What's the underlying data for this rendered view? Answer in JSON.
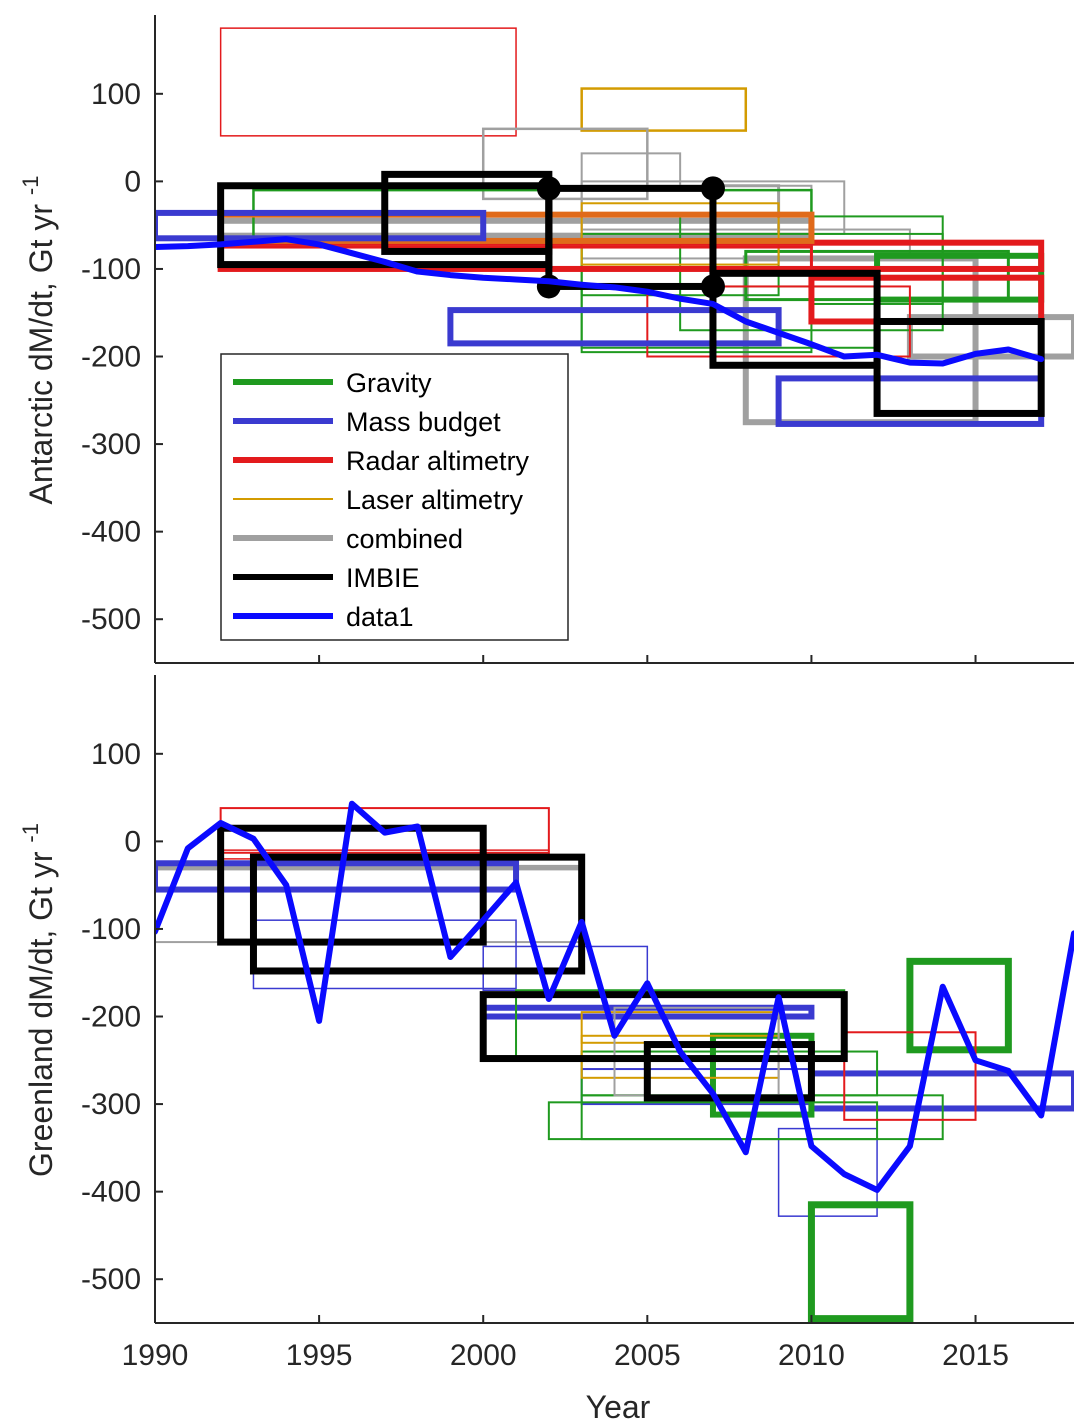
{
  "chart_data": [
    {
      "type": "line",
      "panel": "top",
      "ylabel": "Antarctic dM/dt, Gt yr",
      "ylabel_sup": "-1",
      "xlim": [
        1990,
        2018
      ],
      "ylim": [
        -550,
        190
      ],
      "yticks": [
        100,
        0,
        -100,
        -200,
        -300,
        -400,
        -500
      ],
      "legend_position": "lower-left inside",
      "legend": [
        {
          "name": "Gravity",
          "color": "#1f9a1f",
          "width": 6
        },
        {
          "name": "Mass budget",
          "color": "#3a3ad0",
          "width": 6
        },
        {
          "name": "Radar altimetry",
          "color": "#e31a1c",
          "width": 6
        },
        {
          "name": "Laser altimetry",
          "color": "#d39b00",
          "width": 2
        },
        {
          "name": "combined",
          "color": "#a0a0a0",
          "width": 6
        },
        {
          "name": "IMBIE",
          "color": "#000000",
          "width": 6
        },
        {
          "name": "data1",
          "color": "#0a0aff",
          "width": 6
        }
      ],
      "boxes": [
        {
          "group": "Radar altimetry",
          "x0": 1992,
          "x1": 2001,
          "y0": 52,
          "y1": 175,
          "w": 1.5
        },
        {
          "group": "Laser altimetry",
          "x0": 2003,
          "x1": 2008,
          "y0": 58,
          "y1": 106,
          "w": 2.5
        },
        {
          "group": "combined",
          "x0": 2000,
          "x1": 2005,
          "y0": -20,
          "y1": 60,
          "w": 2.5
        },
        {
          "group": "combined",
          "x0": 2003,
          "x1": 2006,
          "y0": -10,
          "y1": 32,
          "w": 2
        },
        {
          "group": "combined",
          "x0": 2003,
          "x1": 2010,
          "y0": -70,
          "y1": -5,
          "w": 2
        },
        {
          "group": "combined",
          "x0": 2007,
          "x1": 2009,
          "y0": -70,
          "y1": -5,
          "w": 3
        },
        {
          "group": "combined",
          "x0": 2003,
          "x1": 2011,
          "y0": -60,
          "y1": 0,
          "w": 2
        },
        {
          "group": "combined",
          "x0": 2003,
          "x1": 2009,
          "y0": -75,
          "y1": -40,
          "w": 2
        },
        {
          "group": "combined",
          "x0": 2003,
          "x1": 2013,
          "y0": -88,
          "y1": -55,
          "w": 2
        },
        {
          "group": "combined",
          "x0": 2008,
          "x1": 2015,
          "y0": -275,
          "y1": -88,
          "w": 6
        },
        {
          "group": "combined",
          "x0": 2013,
          "x1": 2018,
          "y0": -200,
          "y1": -155,
          "w": 6
        },
        {
          "group": "combined",
          "x0": 1992,
          "x1": 2010,
          "y0": -62,
          "y1": -45,
          "w": 6
        },
        {
          "group": "Gravity",
          "x0": 1993,
          "x1": 2010,
          "y0": -70,
          "y1": -10,
          "w": 2.5
        },
        {
          "group": "Gravity",
          "x0": 2003,
          "x1": 2009,
          "y0": -130,
          "y1": -75,
          "w": 2
        },
        {
          "group": "Gravity",
          "x0": 2003,
          "x1": 2010,
          "y0": -195,
          "y1": -60,
          "w": 2
        },
        {
          "group": "Gravity",
          "x0": 2003,
          "x1": 2012,
          "y0": -190,
          "y1": -120,
          "w": 2
        },
        {
          "group": "Gravity",
          "x0": 2006,
          "x1": 2014,
          "y0": -170,
          "y1": -40,
          "w": 2
        },
        {
          "group": "Gravity",
          "x0": 2010,
          "x1": 2014,
          "y0": -140,
          "y1": -60,
          "w": 2
        },
        {
          "group": "Gravity",
          "x0": 2008,
          "x1": 2016,
          "y0": -135,
          "y1": -80,
          "w": 3
        },
        {
          "group": "Gravity",
          "x0": 2012,
          "x1": 2017,
          "y0": -135,
          "y1": -85,
          "w": 6
        },
        {
          "group": "Laser altimetry",
          "x0": 2003,
          "x1": 2009,
          "y0": -95,
          "y1": -25,
          "w": 2
        },
        {
          "group": "Radar altimetry",
          "x0": 1992,
          "x1": 2010,
          "y0": -100,
          "y1": -75,
          "w": 3
        },
        {
          "group": "Radar altimetry",
          "x0": 1992,
          "x1": 2017,
          "y0": -100,
          "y1": -70,
          "w": 6
        },
        {
          "group": "Radar altimetry",
          "x0": 2010,
          "x1": 2017,
          "y0": -160,
          "y1": -110,
          "w": 6
        },
        {
          "group": "Radar altimetry",
          "x0": 2005,
          "x1": 2013,
          "y0": -200,
          "y1": -120,
          "w": 2
        },
        {
          "group": "Laser altimetry",
          "x0": 1992,
          "x1": 2010,
          "y0": -68,
          "y1": -38,
          "w": 6,
          "color": "#e06a1a"
        },
        {
          "group": "Mass budget",
          "x0": 1990,
          "x1": 2000,
          "y0": -65,
          "y1": -36,
          "w": 6
        },
        {
          "group": "Mass budget",
          "x0": 1999,
          "x1": 2009,
          "y0": -185,
          "y1": -147,
          "w": 6
        },
        {
          "group": "Mass budget",
          "x0": 2009,
          "x1": 2017,
          "y0": -277,
          "y1": -225,
          "w": 6
        },
        {
          "group": "IMBIE",
          "x0": 1992,
          "x1": 2002,
          "y0": -95,
          "y1": -5,
          "w": 7
        },
        {
          "group": "IMBIE",
          "x0": 1997,
          "x1": 2002,
          "y0": -80,
          "y1": 8,
          "w": 7
        },
        {
          "group": "IMBIE",
          "x0": 2002,
          "x1": 2007,
          "y0": -120,
          "y1": -8,
          "w": 7
        },
        {
          "group": "IMBIE",
          "x0": 2007,
          "x1": 2012,
          "y0": -210,
          "y1": -105,
          "w": 7
        },
        {
          "group": "IMBIE",
          "x0": 2012,
          "x1": 2017,
          "y0": -265,
          "y1": -160,
          "w": 7
        }
      ],
      "markers": [
        {
          "x": 2002,
          "y": -8
        },
        {
          "x": 2007,
          "y": -8
        },
        {
          "x": 2002,
          "y": -120
        },
        {
          "x": 2007,
          "y": -120
        }
      ],
      "series": [
        {
          "name": "data1",
          "x": [
            1990,
            1991,
            1992,
            1993,
            1994,
            1995,
            1996,
            1997,
            1998,
            1999,
            2000,
            2001,
            2002,
            2003,
            2004,
            2005,
            2006,
            2007,
            2008,
            2009,
            2010,
            2011,
            2012,
            2013,
            2014,
            2015,
            2016,
            2017
          ],
          "values": [
            -75,
            -74,
            -72,
            -69,
            -66,
            -72,
            -82,
            -92,
            -103,
            -107,
            -110,
            -112,
            -114,
            -118,
            -121,
            -126,
            -134,
            -140,
            -160,
            -173,
            -186,
            -200,
            -198,
            -207,
            -208,
            -197,
            -192,
            -203
          ]
        }
      ]
    },
    {
      "type": "line",
      "panel": "bottom",
      "ylabel": "Greenland dM/dt, Gt yr",
      "ylabel_sup": "-1",
      "xlabel": "Year",
      "xlim": [
        1990,
        2018
      ],
      "ylim": [
        -550,
        190
      ],
      "xticks": [
        1990,
        1995,
        2000,
        2005,
        2010,
        2015
      ],
      "yticks": [
        100,
        0,
        -100,
        -200,
        -300,
        -400,
        -500
      ],
      "boxes": [
        {
          "group": "Radar altimetry",
          "x0": 1992,
          "x1": 2002,
          "y0": -13,
          "y1": 38,
          "w": 2
        },
        {
          "group": "Radar altimetry",
          "x0": 1992,
          "x1": 2002,
          "y0": -20,
          "y1": -10,
          "w": 1.5
        },
        {
          "group": "combined",
          "x0": 1990,
          "x1": 2003,
          "y0": -115,
          "y1": -30,
          "w": 2
        },
        {
          "group": "combined",
          "x0": 1990,
          "x1": 2003,
          "y0": -32,
          "y1": -28,
          "w": 2
        },
        {
          "group": "Mass budget",
          "x0": 1990,
          "x1": 2001,
          "y0": -55,
          "y1": -25,
          "w": 6
        },
        {
          "group": "Mass budget",
          "x0": 1993,
          "x1": 2001,
          "y0": -168,
          "y1": -90,
          "w": 1.5
        },
        {
          "group": "Mass budget",
          "x0": 2000,
          "x1": 2005,
          "y0": -170,
          "y1": -120,
          "w": 1.5
        },
        {
          "group": "Mass budget",
          "x0": 2000,
          "x1": 2010,
          "y0": -200,
          "y1": -190,
          "w": 6
        },
        {
          "group": "Mass budget",
          "x0": 2003,
          "x1": 2010,
          "y0": -300,
          "y1": -260,
          "w": 2
        },
        {
          "group": "Mass budget",
          "x0": 2009,
          "x1": 2012,
          "y0": -428,
          "y1": -328,
          "w": 1.5
        },
        {
          "group": "Mass budget",
          "x0": 2010,
          "x1": 2018,
          "y0": -305,
          "y1": -265,
          "w": 6
        },
        {
          "group": "Gravity",
          "x0": 2001,
          "x1": 2011,
          "y0": -248,
          "y1": -170,
          "w": 2
        },
        {
          "group": "Gravity",
          "x0": 2002,
          "x1": 2012,
          "y0": -340,
          "y1": -298,
          "w": 2
        },
        {
          "group": "Gravity",
          "x0": 2003,
          "x1": 2014,
          "y0": -340,
          "y1": -290,
          "w": 2
        },
        {
          "group": "Gravity",
          "x0": 2003,
          "x1": 2012,
          "y0": -290,
          "y1": -240,
          "w": 2
        },
        {
          "group": "Gravity",
          "x0": 2007,
          "x1": 2010,
          "y0": -312,
          "y1": -222,
          "w": 6
        },
        {
          "group": "Gravity",
          "x0": 2010,
          "x1": 2013,
          "y0": -545,
          "y1": -415,
          "w": 7
        },
        {
          "group": "Gravity",
          "x0": 2013,
          "x1": 2016,
          "y0": -238,
          "y1": -137,
          "w": 7
        },
        {
          "group": "Laser altimetry",
          "x0": 2003,
          "x1": 2009,
          "y0": -270,
          "y1": -195,
          "w": 2
        },
        {
          "group": "Laser altimetry",
          "x0": 2003,
          "x1": 2009,
          "y0": -230,
          "y1": -222,
          "w": 2
        },
        {
          "group": "combined",
          "x0": 2004,
          "x1": 2009,
          "y0": -290,
          "y1": -190,
          "w": 2
        },
        {
          "group": "Radar altimetry",
          "x0": 2011,
          "x1": 2015,
          "y0": -318,
          "y1": -218,
          "w": 2
        },
        {
          "group": "IMBIE",
          "x0": 1992,
          "x1": 2000,
          "y0": -115,
          "y1": 15,
          "w": 7
        },
        {
          "group": "IMBIE",
          "x0": 1993,
          "x1": 2003,
          "y0": -148,
          "y1": -18,
          "w": 7
        },
        {
          "group": "IMBIE",
          "x0": 2000,
          "x1": 2011,
          "y0": -248,
          "y1": -175,
          "w": 7
        },
        {
          "group": "IMBIE",
          "x0": 2005,
          "x1": 2010,
          "y0": -293,
          "y1": -232,
          "w": 7
        }
      ],
      "series": [
        {
          "name": "data1",
          "x": [
            1990,
            1991,
            1992,
            1993,
            1994,
            1995,
            1996,
            1997,
            1998,
            1999,
            2000,
            2001,
            2002,
            2003,
            2004,
            2005,
            2006,
            2007,
            2008,
            2009,
            2010,
            2011,
            2012,
            2013,
            2014,
            2015,
            2016,
            2017,
            2018
          ],
          "values": [
            -103,
            -8,
            21,
            3,
            -50,
            -205,
            43,
            10,
            17,
            -132,
            -90,
            -47,
            -180,
            -92,
            -222,
            -162,
            -240,
            -288,
            -355,
            -178,
            -348,
            -380,
            -398,
            -348,
            -166,
            -250,
            -262,
            -313,
            -105
          ]
        }
      ]
    }
  ]
}
